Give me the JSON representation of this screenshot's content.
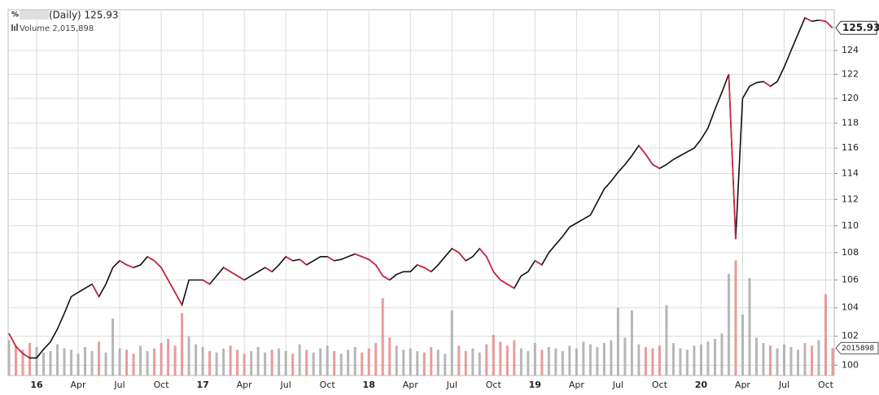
{
  "chart_data": {
    "type": "line",
    "title": "(Daily) 125.93",
    "volume_label": "Volume 2,015,898",
    "last_price_label": "125.93",
    "last_volume_label": "2015898",
    "log_scale": true,
    "grid": true,
    "categories": [
      null,
      null,
      null,
      null,
      "16",
      null,
      null,
      null,
      null,
      null,
      "Apr",
      null,
      null,
      null,
      null,
      null,
      "Jul",
      null,
      null,
      null,
      null,
      null,
      "Oct",
      null,
      null,
      null,
      null,
      null,
      "17",
      null,
      null,
      null,
      null,
      null,
      "Apr",
      null,
      null,
      null,
      null,
      null,
      "Jul",
      null,
      null,
      null,
      null,
      null,
      "Oct",
      null,
      null,
      null,
      null,
      null,
      "18",
      null,
      null,
      null,
      null,
      null,
      "Apr",
      null,
      null,
      null,
      null,
      null,
      "Jul",
      null,
      null,
      null,
      null,
      null,
      "Oct",
      null,
      null,
      null,
      null,
      null,
      "19",
      null,
      null,
      null,
      null,
      null,
      "Apr",
      null,
      null,
      null,
      null,
      null,
      "Jul",
      null,
      null,
      null,
      null,
      null,
      "Oct",
      null,
      null,
      null,
      null,
      null,
      "20",
      null,
      null,
      null,
      null,
      null,
      "Apr",
      null,
      null,
      null,
      null,
      null,
      "Jul",
      null,
      null,
      null,
      null,
      null,
      "Oct",
      null
    ],
    "ylim": [
      99.3,
      127.5
    ],
    "yticks": [
      100,
      102,
      104,
      106,
      108,
      110,
      112,
      114,
      116,
      118,
      120,
      122,
      124
    ],
    "y2lim": [
      0,
      12000000
    ],
    "series": [
      {
        "name": "Price",
        "color": "#111111",
        "values": [
          102.2,
          101.3,
          100.8,
          100.5,
          100.5,
          101.1,
          101.6,
          102.5,
          103.6,
          104.8,
          105.1,
          105.4,
          105.7,
          104.8,
          105.7,
          106.9,
          107.4,
          107.1,
          106.9,
          107.1,
          107.7,
          107.4,
          106.9,
          106,
          105.1,
          104.2,
          106,
          106,
          106,
          105.7,
          106.3,
          106.9,
          106.6,
          106.3,
          106,
          106.3,
          106.6,
          106.9,
          106.6,
          107.1,
          107.7,
          107.4,
          107.5,
          107.1,
          107.4,
          107.7,
          107.7,
          107.4,
          107.5,
          107.7,
          107.9,
          107.7,
          107.5,
          107.1,
          106.3,
          106,
          106.4,
          106.6,
          106.6,
          107.1,
          106.9,
          106.6,
          107.1,
          107.7,
          108.3,
          108,
          107.4,
          107.7,
          108.3,
          107.7,
          106.6,
          106,
          105.7,
          105.4,
          106.3,
          106.6,
          107.4,
          107.1,
          108,
          108.6,
          109.2,
          109.9,
          110.2,
          110.5,
          110.8,
          111.8,
          112.8,
          113.4,
          114.1,
          114.7,
          115.4,
          116.2,
          115.5,
          114.7,
          114.4,
          114.7,
          115.1,
          115.4,
          115.7,
          116,
          116.7,
          117.6,
          119.1,
          120.5,
          122,
          109,
          120,
          121,
          121.3,
          121.4,
          121,
          121.4,
          122.6,
          124,
          125.4,
          126.8,
          126.5,
          126.6,
          126.5,
          125.93
        ]
      },
      {
        "name": "Volume",
        "axis": "y2",
        "color": "#e58a8a",
        "values": [
          2600000,
          2200000,
          1900000,
          2400000,
          2100000,
          1700000,
          1800000,
          2300000,
          2000000,
          1900000,
          1600000,
          2100000,
          1800000,
          2500000,
          1700000,
          4200000,
          2000000,
          1900000,
          1600000,
          2200000,
          1800000,
          2000000,
          2400000,
          2700000,
          2200000,
          4600000,
          2900000,
          2300000,
          2100000,
          1800000,
          1700000,
          2000000,
          2200000,
          1900000,
          1600000,
          1800000,
          2100000,
          1700000,
          1900000,
          2000000,
          1800000,
          1600000,
          2300000,
          1900000,
          1700000,
          2000000,
          2200000,
          1800000,
          1600000,
          1900000,
          2100000,
          1700000,
          2000000,
          2400000,
          5700000,
          2800000,
          2200000,
          1900000,
          2000000,
          1800000,
          1700000,
          2100000,
          1900000,
          1600000,
          4800000,
          2200000,
          1800000,
          2000000,
          1700000,
          2300000,
          3000000,
          2500000,
          2200000,
          2600000,
          2000000,
          1800000,
          2400000,
          1900000,
          2100000,
          2000000,
          1800000,
          2200000,
          2000000,
          2500000,
          2300000,
          2100000,
          2400000,
          2600000,
          5000000,
          2800000,
          4800000,
          2300000,
          2100000,
          2000000,
          2200000,
          5200000,
          2400000,
          2000000,
          1900000,
          2200000,
          2300000,
          2500000,
          2700000,
          3100000,
          7500000,
          8500000,
          4500000,
          7200000,
          2800000,
          2400000,
          2200000,
          2000000,
          2300000,
          2100000,
          1900000,
          2400000,
          2200000,
          2600000,
          6000000,
          2015898
        ]
      }
    ]
  }
}
